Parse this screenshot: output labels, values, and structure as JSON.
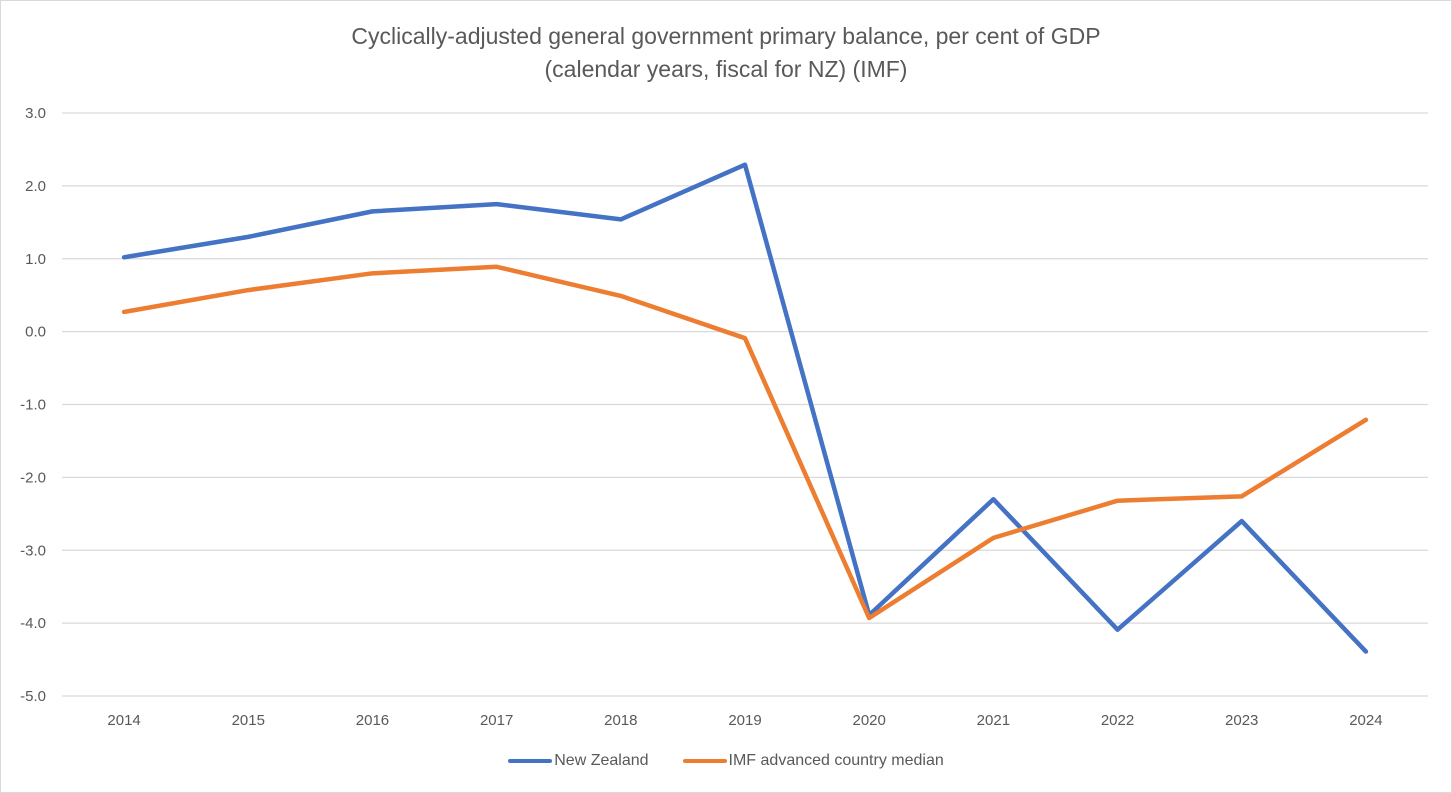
{
  "chart_data": {
    "type": "line",
    "title": "Cyclically-adjusted general government primary balance, per cent of GDP",
    "subtitle": "(calendar years, fiscal for NZ)  (IMF)",
    "xlabel": "",
    "ylabel": "",
    "categories": [
      "2014",
      "2015",
      "2016",
      "2017",
      "2018",
      "2019",
      "2020",
      "2021",
      "2022",
      "2023",
      "2024"
    ],
    "ylim": [
      -5.0,
      3.0
    ],
    "yticks": [
      "3.0",
      "2.0",
      "1.0",
      "0.0",
      "-1.0",
      "-2.0",
      "-3.0",
      "-4.0",
      "-5.0"
    ],
    "ytick_values": [
      3,
      2,
      1,
      0,
      -1,
      -2,
      -3,
      -4,
      -5
    ],
    "grid": true,
    "legend_position": "bottom",
    "series": [
      {
        "name": "New Zealand",
        "color": "#4472C4",
        "values": [
          1.02,
          1.3,
          1.65,
          1.75,
          1.54,
          2.29,
          -3.89,
          -2.3,
          -4.09,
          -2.6,
          -4.39
        ]
      },
      {
        "name": "IMF advanced country median",
        "color": "#ED7D31",
        "values": [
          0.27,
          0.57,
          0.8,
          0.89,
          0.49,
          -0.09,
          -3.93,
          -2.83,
          -2.32,
          -2.26,
          -1.21
        ]
      }
    ]
  }
}
